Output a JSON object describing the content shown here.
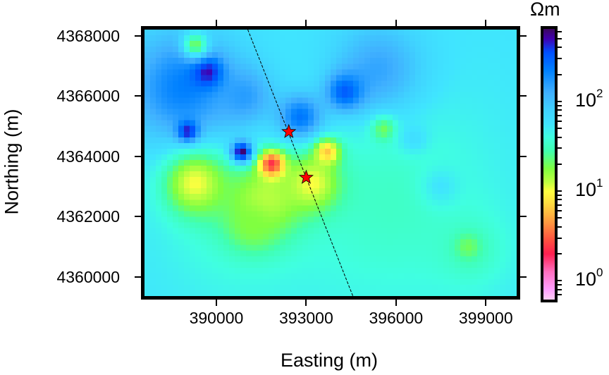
{
  "chart_data": {
    "type": "heatmap",
    "title": "",
    "xlabel": "Easting (m)",
    "ylabel": "Northing (m)",
    "xlim": [
      387600,
      400030
    ],
    "ylim": [
      4359365,
      4368210
    ],
    "xticks": [
      390000,
      393000,
      396000,
      399000
    ],
    "xtick_labels": [
      "390000",
      "393000",
      "396000",
      "399000"
    ],
    "yticks": [
      4360000,
      4362000,
      4364000,
      4366000,
      4368000
    ],
    "ytick_labels": [
      "4360000",
      "4362000",
      "4364000",
      "4366000",
      "4368000"
    ],
    "colorbar": {
      "unit": "Ωm",
      "scale": "log",
      "log_range": [
        -0.21,
        2.81
      ],
      "labels": [
        {
          "base": "10",
          "exp": "0",
          "log": 0
        },
        {
          "base": "10",
          "exp": "1",
          "log": 1
        },
        {
          "base": "10",
          "exp": "2",
          "log": 2
        }
      ]
    },
    "background_log_resistivity": 1.75,
    "features": [
      {
        "e": 395800,
        "n": 4362500,
        "log": 1.52,
        "sigma": 2600
      },
      {
        "e": 390800,
        "n": 4361800,
        "log": 1.55,
        "sigma": 1800
      },
      {
        "e": 398500,
        "n": 4360900,
        "log": 1.5,
        "sigma": 900
      },
      {
        "e": 395400,
        "n": 4366900,
        "log": 2.15,
        "sigma": 1100
      },
      {
        "e": 388900,
        "n": 4366300,
        "log": 2.35,
        "sigma": 1300
      },
      {
        "e": 390900,
        "n": 4366000,
        "log": 2.2,
        "sigma": 700
      },
      {
        "e": 389700,
        "n": 4366800,
        "log": 2.7,
        "sigma": 350
      },
      {
        "e": 389050,
        "n": 4364800,
        "log": 2.8,
        "sigma": 250
      },
      {
        "e": 392800,
        "n": 4365300,
        "log": 2.4,
        "sigma": 550
      },
      {
        "e": 394300,
        "n": 4366150,
        "log": 2.5,
        "sigma": 450
      },
      {
        "e": 389300,
        "n": 4363100,
        "log": 1.0,
        "sigma": 750
      },
      {
        "e": 391600,
        "n": 4362500,
        "log": 1.1,
        "sigma": 900
      },
      {
        "e": 393200,
        "n": 4363100,
        "log": 1.0,
        "sigma": 650
      },
      {
        "e": 391200,
        "n": 4361700,
        "log": 1.25,
        "sigma": 550
      },
      {
        "e": 393700,
        "n": 4364150,
        "log": 0.8,
        "sigma": 300
      },
      {
        "e": 391850,
        "n": 4363750,
        "log": 0.35,
        "sigma": 300
      },
      {
        "e": 390850,
        "n": 4364150,
        "log": 2.8,
        "sigma": 250
      },
      {
        "e": 395600,
        "n": 4364900,
        "log": 1.3,
        "sigma": 300
      },
      {
        "e": 389300,
        "n": 4367700,
        "log": 1.3,
        "sigma": 300
      },
      {
        "e": 398400,
        "n": 4361000,
        "log": 1.3,
        "sigma": 300
      },
      {
        "e": 397500,
        "n": 4363000,
        "log": 1.75,
        "sigma": 450
      },
      {
        "e": 396600,
        "n": 4364600,
        "log": 1.8,
        "sigma": 350
      }
    ],
    "profile_line": {
      "start": [
        391050,
        4368210
      ],
      "end": [
        394560,
        4359365
      ]
    },
    "stars": [
      {
        "e": 392420,
        "n": 4364820
      },
      {
        "e": 393000,
        "n": 4363300
      }
    ],
    "colors": {
      "star": "#ff0000",
      "frame": "#000000"
    }
  }
}
